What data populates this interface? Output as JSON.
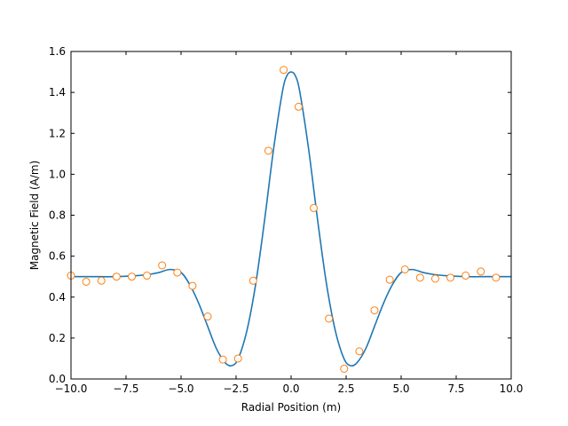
{
  "chart_data": {
    "type": "line",
    "title": "",
    "xlabel": "Radial Position (m)",
    "ylabel": "Magnetic Field (A/m)",
    "xlim": [
      -10,
      10
    ],
    "ylim": [
      0,
      1.6
    ],
    "xticks": [
      -10,
      -7.5,
      -5,
      -2.5,
      0,
      2.5,
      5,
      7.5,
      10
    ],
    "xtick_labels": [
      "−10.0",
      "−7.5",
      "−5.0",
      "−2.5",
      "0.0",
      "2.5",
      "5.0",
      "7.5",
      "10.0"
    ],
    "yticks": [
      0,
      0.2,
      0.4,
      0.6,
      0.8,
      1.0,
      1.2,
      1.4,
      1.6
    ],
    "ytick_labels": [
      "0.0",
      "0.2",
      "0.4",
      "0.6",
      "0.8",
      "1.0",
      "1.2",
      "1.4",
      "1.6"
    ],
    "grid": false,
    "legend": "none",
    "series": [
      {
        "type": "line",
        "color": "#1f77b4",
        "x": [
          -10,
          -9,
          -8,
          -7,
          -6.5,
          -6,
          -5.5,
          -5,
          -4.6,
          -4.2,
          -3.8,
          -3.4,
          -3,
          -2.7,
          -2.4,
          -2,
          -1.6,
          -1.2,
          -0.8,
          -0.4,
          -0.2,
          0,
          0.2,
          0.4,
          0.8,
          1.2,
          1.6,
          2,
          2.4,
          2.7,
          3,
          3.4,
          3.8,
          4.2,
          4.6,
          5,
          5.5,
          6,
          6.5,
          7,
          8,
          9,
          10
        ],
        "y": [
          0.5,
          0.5,
          0.5,
          0.505,
          0.51,
          0.52,
          0.535,
          0.52,
          0.46,
          0.37,
          0.26,
          0.15,
          0.08,
          0.065,
          0.1,
          0.24,
          0.47,
          0.78,
          1.12,
          1.4,
          1.48,
          1.5,
          1.48,
          1.4,
          1.12,
          0.78,
          0.47,
          0.24,
          0.1,
          0.065,
          0.08,
          0.15,
          0.26,
          0.37,
          0.46,
          0.52,
          0.535,
          0.52,
          0.51,
          0.505,
          0.5,
          0.5,
          0.5
        ]
      },
      {
        "type": "scatter",
        "marker": "open-circle",
        "color": "#ff7f0e",
        "x": [
          -10,
          -9.31,
          -8.62,
          -7.93,
          -7.24,
          -6.55,
          -5.86,
          -5.17,
          -4.48,
          -3.79,
          -3.1,
          -2.41,
          -1.72,
          -1.03,
          -0.34,
          0.34,
          1.03,
          1.72,
          2.41,
          3.1,
          3.79,
          4.48,
          5.17,
          5.86,
          6.55,
          7.24,
          7.93,
          8.62,
          9.31
        ],
        "y": [
          0.505,
          0.475,
          0.48,
          0.5,
          0.5,
          0.505,
          0.555,
          0.52,
          0.455,
          0.305,
          0.095,
          0.1,
          0.48,
          1.115,
          1.51,
          1.33,
          0.835,
          0.295,
          0.05,
          0.135,
          0.335,
          0.485,
          0.535,
          0.495,
          0.49,
          0.495,
          0.505,
          0.525,
          0.495
        ]
      }
    ]
  }
}
